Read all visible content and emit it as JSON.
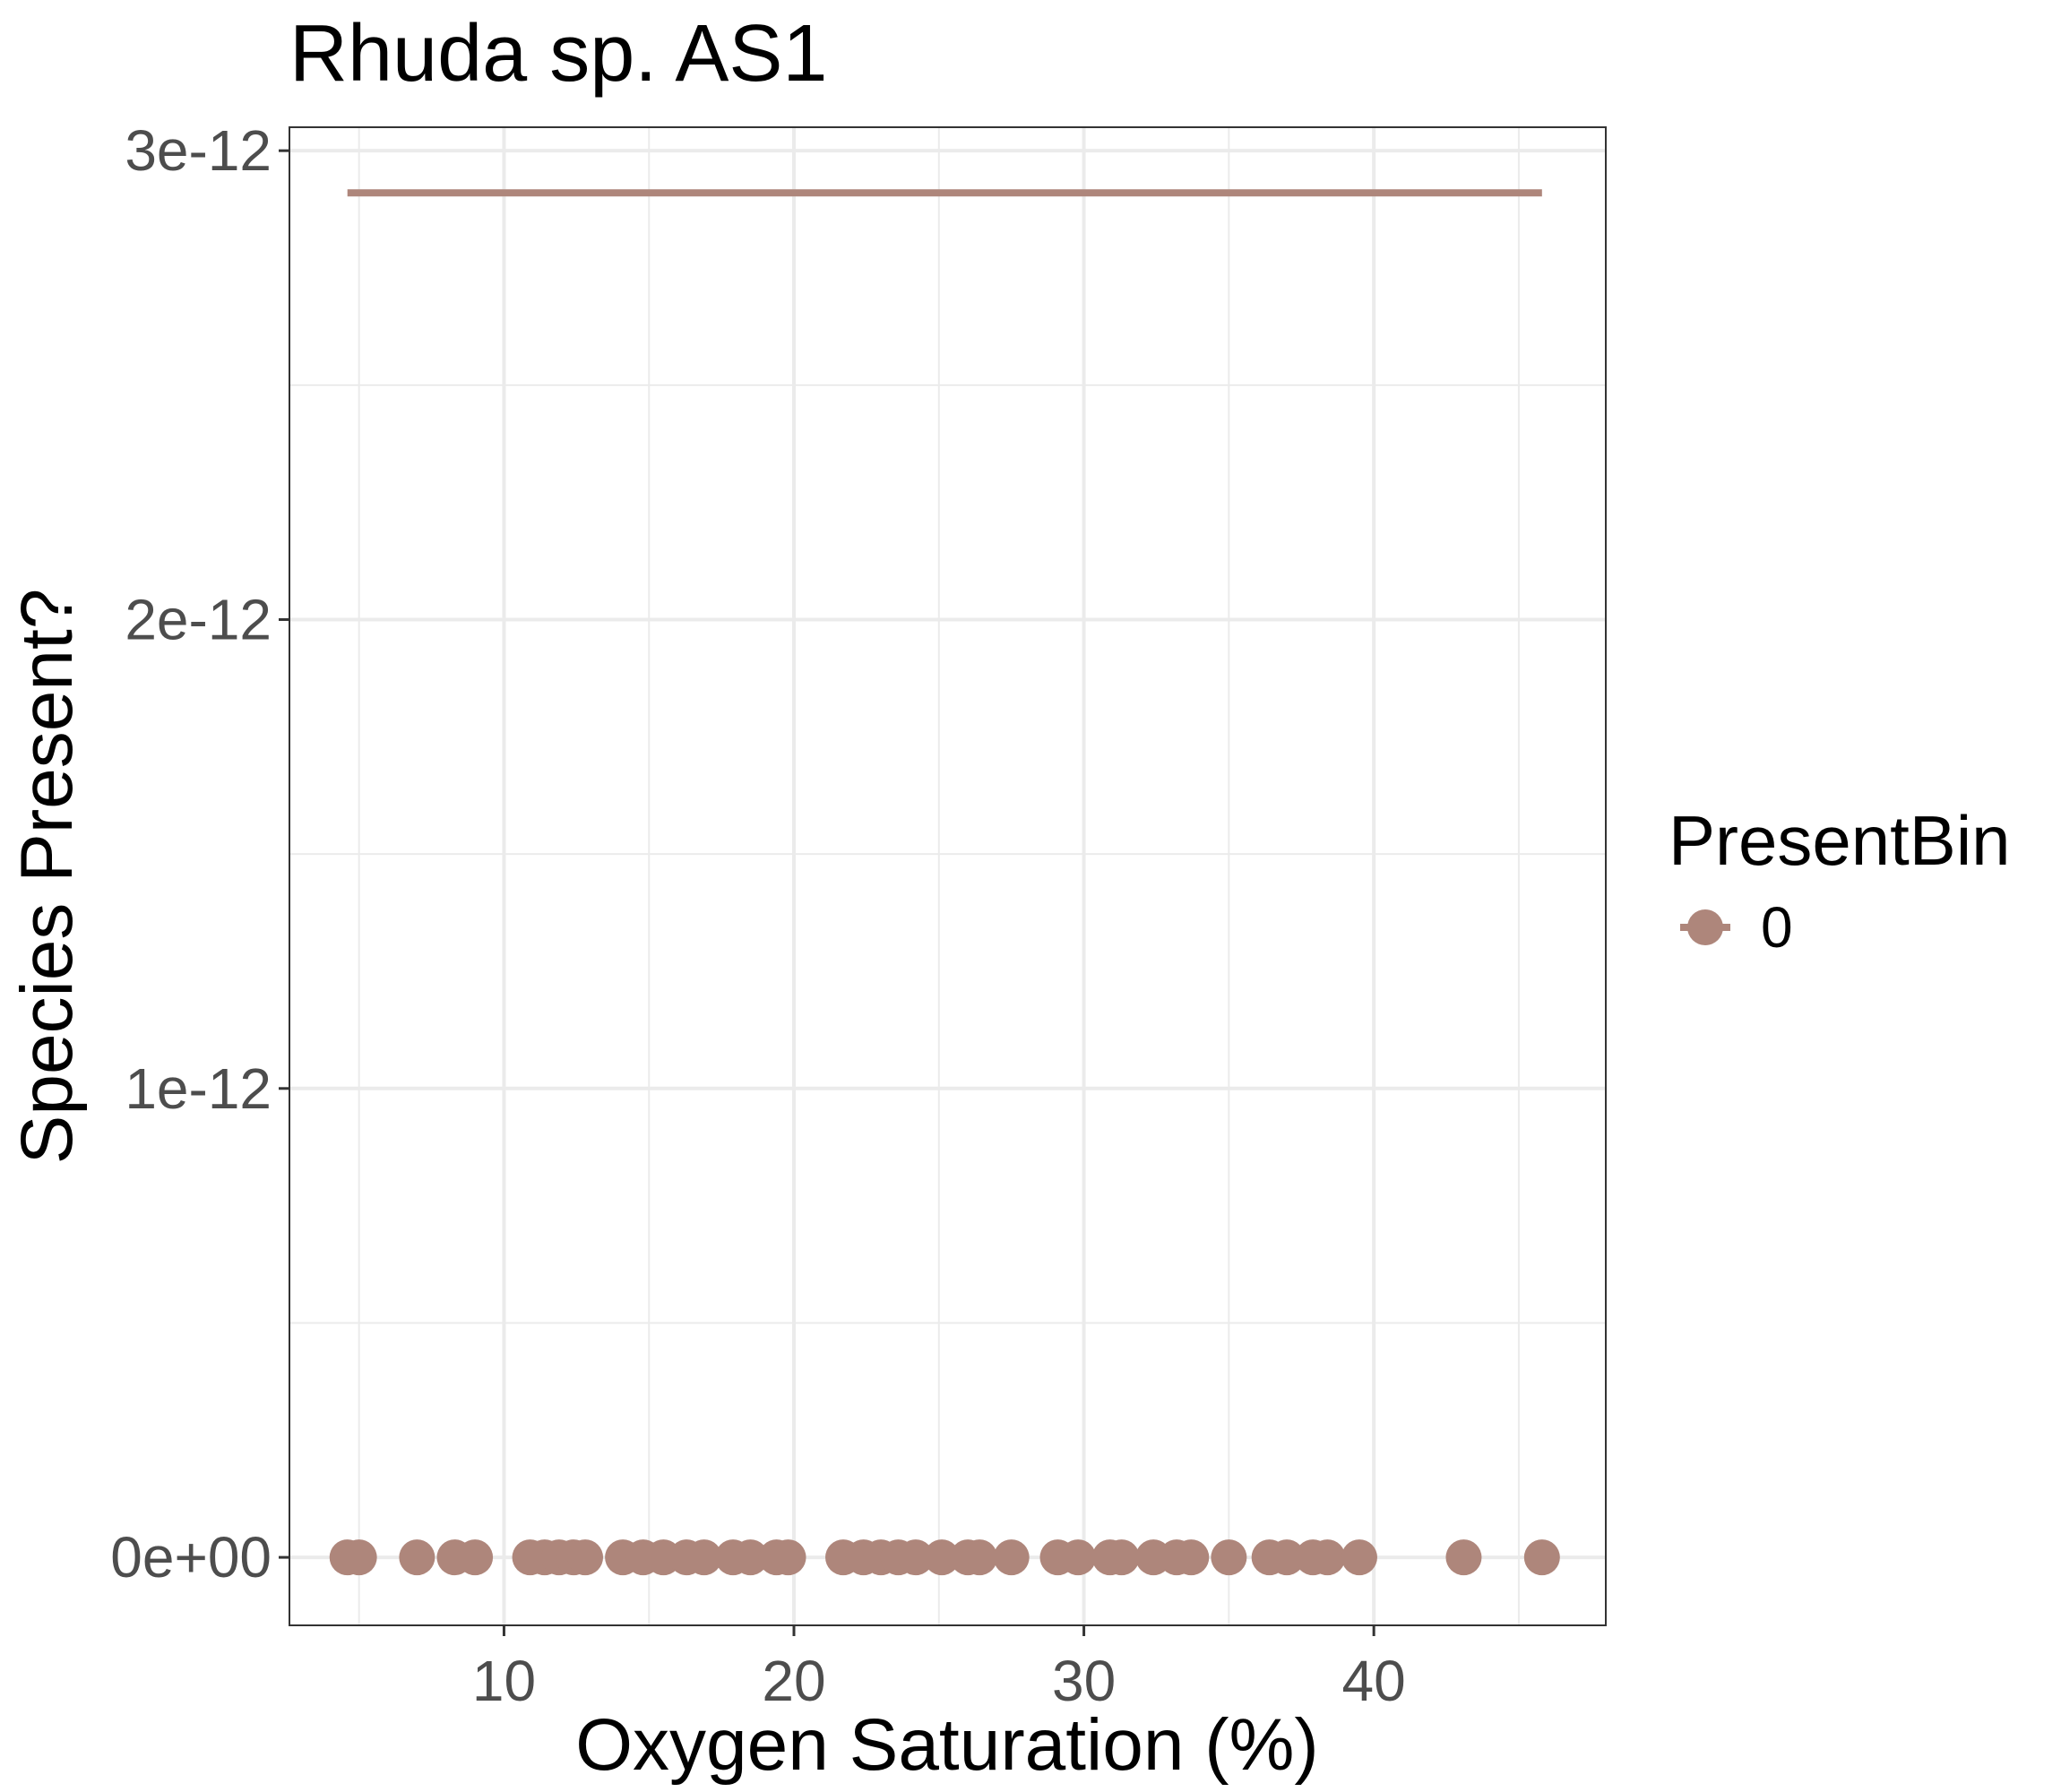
{
  "chart_data": {
    "type": "scatter",
    "title": "Rhuda sp. AS1",
    "xlabel": "Oxygen Saturation (%)",
    "ylabel": "Species Present?",
    "xlim": [
      2.6,
      48.0
    ],
    "ylim": [
      -1.45e-13,
      3.05e-12
    ],
    "x_ticks": [
      10,
      20,
      30,
      40
    ],
    "x_minor_ticks": [
      5,
      15,
      25,
      35,
      45
    ],
    "y_ticks": [
      {
        "value": 0,
        "label": "0e+00"
      },
      {
        "value": 1e-12,
        "label": "1e-12"
      },
      {
        "value": 2e-12,
        "label": "2e-12"
      },
      {
        "value": 3e-12,
        "label": "3e-12"
      }
    ],
    "y_minor_ticks": [
      5e-13,
      1.5e-12,
      2.5e-12
    ],
    "grid": true,
    "legend": {
      "position": "right",
      "title": "PresentBin",
      "entries": [
        "0"
      ]
    },
    "colors": {
      "series": "#ae867b",
      "grid": "#ebebeb",
      "panel_border": "#333333",
      "tick_label": "#4d4d4d",
      "text": "#000000"
    },
    "series": [
      {
        "name": "0",
        "points": {
          "x": [
            4.6,
            5.0,
            7.0,
            8.3,
            9.0,
            10.9,
            11.4,
            11.9,
            12.4,
            12.8,
            14.1,
            14.8,
            15.5,
            16.3,
            16.9,
            17.9,
            18.5,
            19.4,
            19.8,
            21.7,
            22.4,
            23.0,
            23.6,
            24.2,
            25.1,
            26.0,
            26.4,
            27.5,
            29.1,
            29.8,
            30.9,
            31.3,
            32.4,
            33.2,
            33.7,
            35.0,
            36.4,
            37.0,
            37.9,
            38.4,
            39.5,
            43.1,
            45.8
          ],
          "y": [
            0,
            0,
            0,
            0,
            0,
            0,
            0,
            0,
            0,
            0,
            0,
            0,
            0,
            0,
            0,
            0,
            0,
            0,
            0,
            0,
            0,
            0,
            0,
            0,
            0,
            0,
            0,
            0,
            0,
            0,
            0,
            0,
            0,
            0,
            0,
            0,
            0,
            0,
            0,
            0,
            0,
            0,
            0
          ]
        },
        "fit_line": {
          "x": [
            4.6,
            45.8
          ],
          "y": [
            2.91e-12,
            2.91e-12
          ]
        }
      }
    ]
  }
}
